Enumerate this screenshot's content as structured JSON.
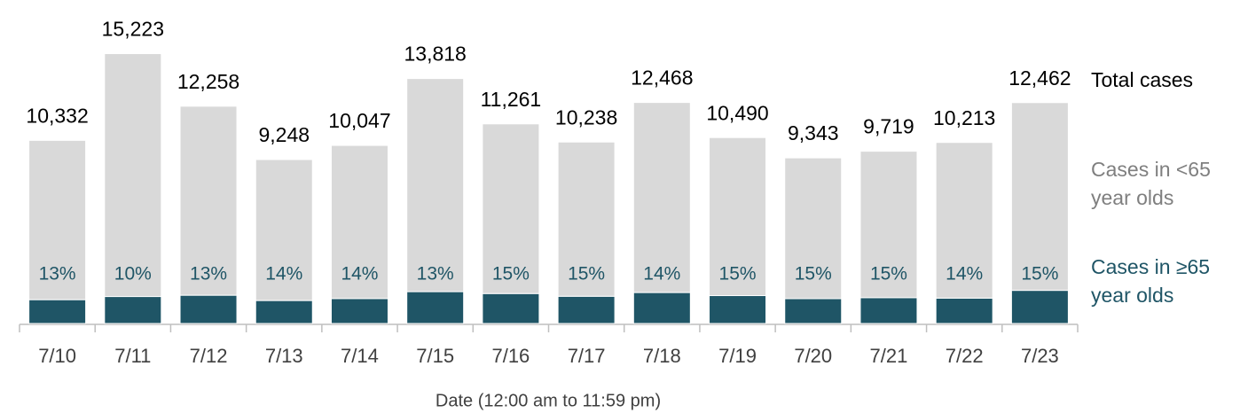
{
  "chart_data": {
    "type": "stacked_bar",
    "x_label": "Date (12:00 am to 11:59 pm)",
    "categories": [
      "7/10",
      "7/11",
      "7/12",
      "7/13",
      "7/14",
      "7/15",
      "7/16",
      "7/17",
      "7/18",
      "7/19",
      "7/20",
      "7/21",
      "7/22",
      "7/23"
    ],
    "series": [
      {
        "name": "Cases in ≥65 year olds",
        "color": "#1f5566",
        "values": [
          1343,
          1522,
          1594,
          1295,
          1407,
          1796,
          1689,
          1536,
          1746,
          1574,
          1401,
          1458,
          1430,
          1869
        ],
        "share_labels": [
          "13%",
          "10%",
          "13%",
          "14%",
          "14%",
          "13%",
          "15%",
          "15%",
          "14%",
          "15%",
          "15%",
          "15%",
          "14%",
          "15%"
        ]
      },
      {
        "name": "Cases in <65 year olds",
        "color": "#d9d9d9",
        "label_color": "#7f7f7f",
        "values": [
          8989,
          13701,
          10664,
          7953,
          8640,
          12022,
          9572,
          8702,
          10722,
          8916,
          7942,
          8261,
          8783,
          10593
        ]
      }
    ],
    "totals_name": "Total cases",
    "totals": [
      10332,
      15223,
      12258,
      9248,
      10047,
      13818,
      11261,
      10238,
      12468,
      10490,
      9343,
      9719,
      10213,
      12462
    ],
    "total_labels": [
      "10,332",
      "15,223",
      "12,258",
      "9,248",
      "10,047",
      "13,818",
      "11,261",
      "10,238",
      "12,468",
      "10,490",
      "9,343",
      "9,719",
      "10,213",
      "12,462"
    ],
    "ylim": [
      0,
      16000
    ]
  }
}
